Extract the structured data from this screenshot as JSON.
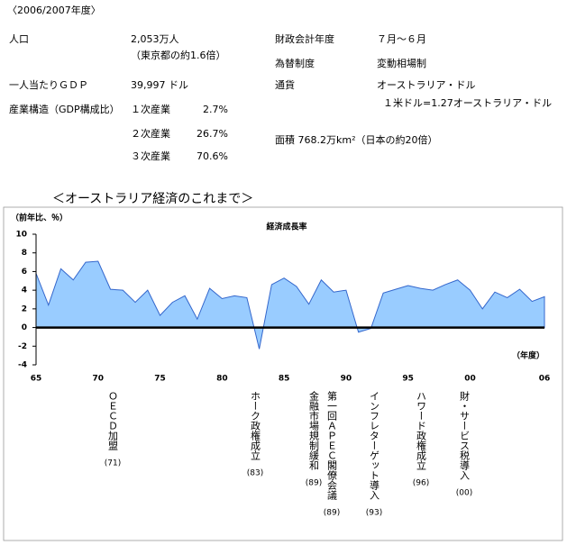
{
  "header": {
    "period": "〈2006/2007年度〉",
    "left": [
      [
        "人口",
        "2,053万人"
      ],
      [
        "",
        "（東京都の約1.6倍）"
      ],
      [
        "一人当たりＧＤＰ",
        "39,997 ドル"
      ],
      [
        "産業構造（GDP構成比）",
        "１次産業",
        "2.7%"
      ],
      [
        "",
        "２次産業",
        "26.7%"
      ],
      [
        "",
        "３次産業",
        "70.6%"
      ]
    ],
    "right": [
      [
        "財政会計年度",
        "７月～６月"
      ],
      [
        "為替制度",
        "変動相場制"
      ],
      [
        "通貨",
        "オーストラリア・ドル"
      ],
      [
        "",
        "１米ドル=1.27オーストラリア・ドル"
      ],
      [
        "面積 768.2万km²（日本の約20倍）"
      ]
    ],
    "section_title": "＜オーストラリア経済のこれまで＞"
  },
  "chart_data": {
    "type": "area",
    "title": "経済成長率",
    "y_label": "（前年比、％）",
    "x_label": "（年度）",
    "categories": [
      "65",
      null,
      null,
      null,
      null,
      "70",
      null,
      null,
      null,
      null,
      "75",
      null,
      null,
      null,
      null,
      "80",
      null,
      null,
      null,
      null,
      "85",
      null,
      null,
      null,
      null,
      "90",
      null,
      null,
      null,
      null,
      "95",
      null,
      null,
      null,
      null,
      "00",
      null,
      null,
      null,
      null,
      null,
      "06"
    ],
    "values": [
      5.8,
      2.4,
      6.3,
      5.1,
      7.0,
      7.1,
      4.1,
      4.0,
      2.7,
      4.0,
      1.3,
      2.7,
      3.4,
      0.9,
      4.2,
      3.1,
      3.4,
      3.2,
      -2.3,
      4.6,
      5.3,
      4.4,
      2.5,
      5.1,
      3.8,
      4.0,
      -0.5,
      -0.1,
      3.7,
      4.1,
      4.5,
      4.2,
      4.0,
      4.6,
      5.1,
      4.0,
      2.0,
      3.8,
      3.2,
      4.1,
      2.8,
      3.3
    ],
    "color": "#99ccff",
    "line_color": "#3366cc",
    "ylim": [
      -4,
      10
    ],
    "yticks": [
      -4,
      -2,
      0,
      2,
      4,
      6,
      8,
      10
    ],
    "annotations": [
      [
        "ＯＥＣＤ加盟",
        "(71)"
      ],
      [
        "ホーク政権成立",
        "(83)"
      ],
      [
        "金融市場規制緩和",
        "(89)"
      ],
      [
        "第一回ＡＰＥＣ閣僚会議",
        "(89)"
      ],
      [
        "インフレターゲット導入",
        "(93)"
      ],
      [
        "ハワード政権成立",
        "(96)"
      ],
      [
        "財・サービス税導入",
        "(00)"
      ]
    ]
  }
}
